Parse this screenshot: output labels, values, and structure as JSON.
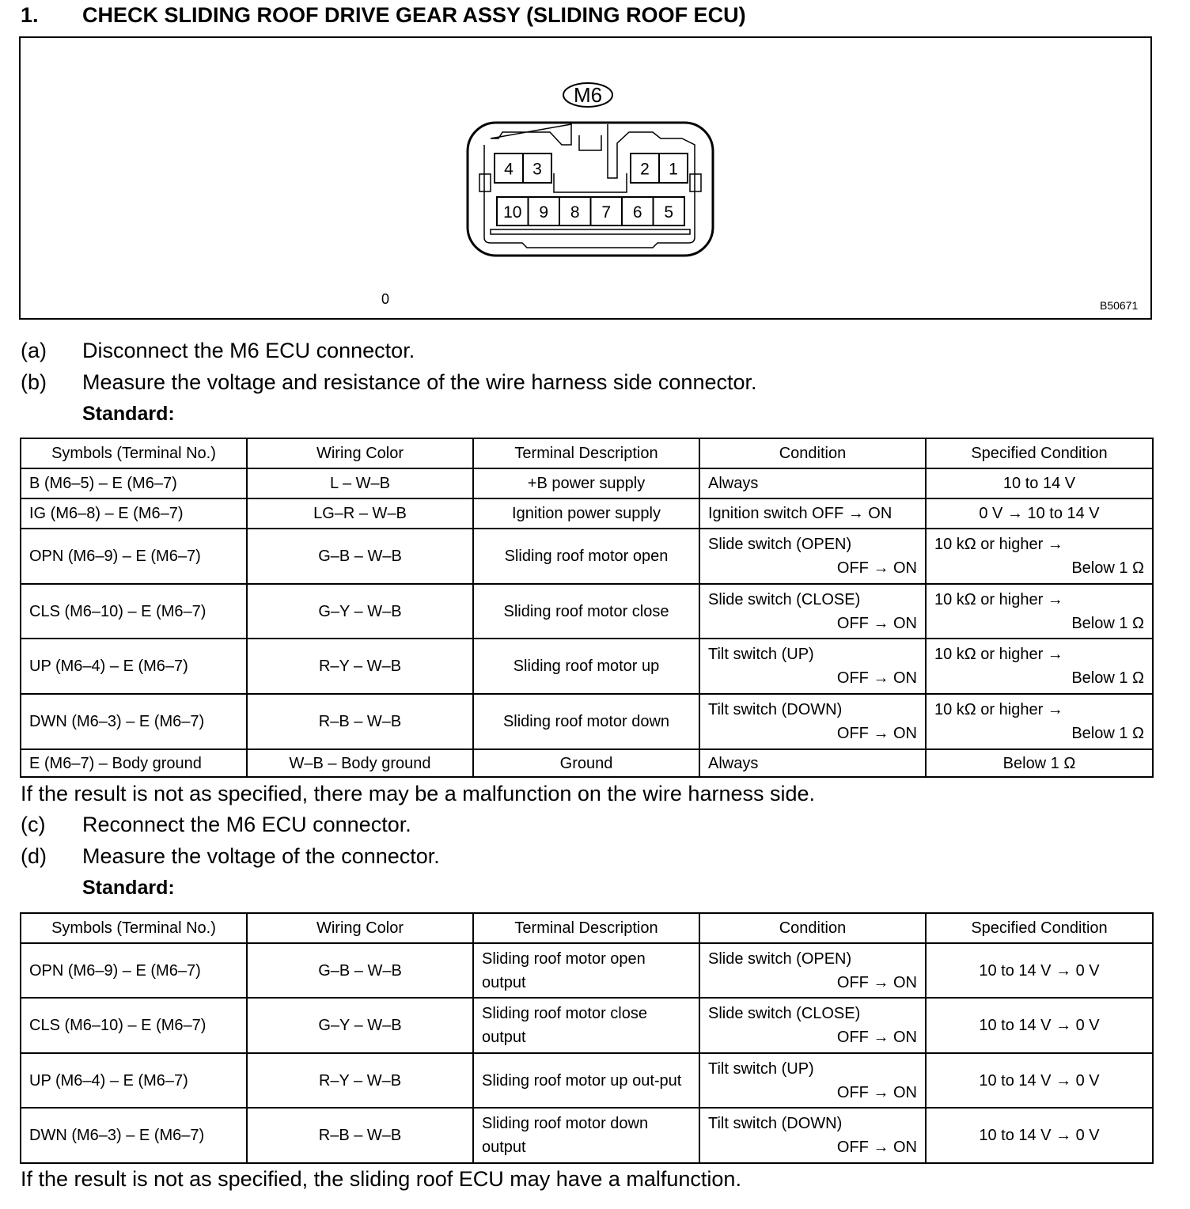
{
  "title": {
    "number": "1.",
    "text": "CHECK SLIDING ROOF DRIVE GEAR ASSY (SLIDING ROOF ECU)"
  },
  "figure": {
    "connector_label": "M6",
    "pins_top_left": [
      "4",
      "3"
    ],
    "pins_top_right": [
      "2",
      "1"
    ],
    "pins_bottom": [
      "10",
      "9",
      "8",
      "7",
      "6",
      "5"
    ],
    "stray_mark": "0",
    "figure_code": "B50671"
  },
  "steps": [
    {
      "label": "(a)",
      "text": "Disconnect the M6 ECU connector."
    },
    {
      "label": "(b)",
      "text": "Measure the voltage and resistance of the wire harness side connector."
    },
    {
      "label": "(c)",
      "text": "Reconnect the M6 ECU connector."
    },
    {
      "label": "(d)",
      "text": "Measure the voltage of the connector."
    }
  ],
  "standard_label": "Standard:",
  "table1": {
    "headers": [
      "Symbols (Terminal No.)",
      "Wiring Color",
      "Terminal Description",
      "Condition",
      "Specified Condition"
    ],
    "rows": [
      [
        "B (M6–5) – E (M6–7)",
        "L – W–B",
        "+B power supply",
        "Always",
        "10 to 14 V"
      ],
      [
        "IG (M6–8) – E (M6–7)",
        "LG–R – W–B",
        "Ignition power supply",
        "Ignition switch OFF → ON",
        "0 V → 10 to 14 V"
      ],
      [
        "OPN (M6–9) – E (M6–7)",
        "G–B – W–B",
        "Sliding roof motor open",
        [
          "Slide switch (OPEN)",
          "OFF → ON"
        ],
        [
          "10 kΩ or higher →",
          "Below 1 Ω"
        ]
      ],
      [
        "CLS (M6–10) – E (M6–7)",
        "G–Y – W–B",
        "Sliding roof motor close",
        [
          "Slide switch (CLOSE)",
          "OFF → ON"
        ],
        [
          "10 kΩ or higher →",
          "Below 1 Ω"
        ]
      ],
      [
        "UP (M6–4) – E (M6–7)",
        "R–Y – W–B",
        "Sliding roof motor up",
        [
          "Tilt switch (UP)",
          "OFF → ON"
        ],
        [
          "10 kΩ or higher →",
          "Below 1 Ω"
        ]
      ],
      [
        "DWN (M6–3) – E (M6–7)",
        "R–B – W–B",
        "Sliding roof motor down",
        [
          "Tilt switch (DOWN)",
          "OFF → ON"
        ],
        [
          "10 kΩ or higher →",
          "Below 1 Ω"
        ]
      ],
      [
        "E (M6–7) – Body ground",
        "W–B – Body ground",
        "Ground",
        "Always",
        "Below 1 Ω"
      ]
    ]
  },
  "note1": "If the result is not as specified, there may be a malfunction on the wire harness side.",
  "table2": {
    "headers": [
      "Symbols (Terminal No.)",
      "Wiring Color",
      "Terminal Description",
      "Condition",
      "Specified Condition"
    ],
    "rows": [
      [
        "OPN (M6–9) – E (M6–7)",
        "G–B – W–B",
        "Sliding roof motor open output",
        [
          "Slide switch (OPEN)",
          "OFF → ON"
        ],
        "10 to 14 V → 0 V"
      ],
      [
        "CLS (M6–10) – E (M6–7)",
        "G–Y – W–B",
        "Sliding roof motor close output",
        [
          "Slide switch (CLOSE)",
          "OFF → ON"
        ],
        "10 to 14 V → 0 V"
      ],
      [
        "UP (M6–4) – E (M6–7)",
        "R–Y – W–B",
        "Sliding roof motor up out-put",
        [
          "Tilt switch (UP)",
          "OFF → ON"
        ],
        "10 to 14 V → 0 V"
      ],
      [
        "DWN (M6–3) – E (M6–7)",
        "R–B – W–B",
        "Sliding roof motor down output",
        [
          "Tilt switch (DOWN)",
          "OFF → ON"
        ],
        "10 to 14 V → 0 V"
      ]
    ]
  },
  "note2": "If the result is not as specified, the sliding roof ECU may have a malfunction."
}
